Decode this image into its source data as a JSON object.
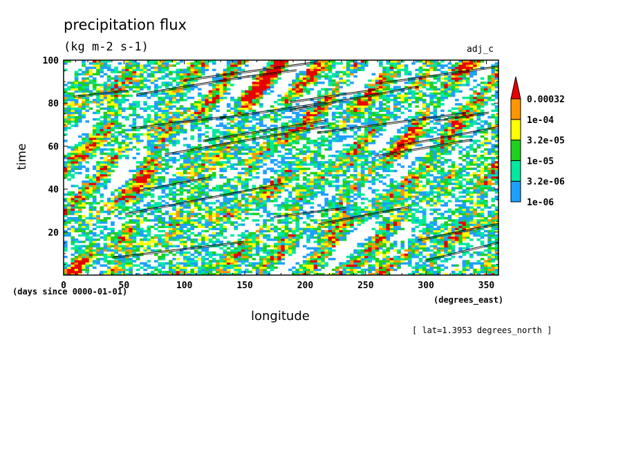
{
  "chart_data": {
    "type": "heatmap",
    "title": "precipitation flux",
    "units": "(kg m-2 s-1)",
    "case_name": "adj_c",
    "xlabel": "longitude",
    "x_units": "(degrees_east)",
    "ylabel": "time",
    "y_units": "(days since 0000-01-01)",
    "xlim": [
      0,
      360
    ],
    "ylim": [
      0,
      100
    ],
    "x_ticks": [
      0,
      50,
      100,
      150,
      200,
      250,
      300,
      350
    ],
    "y_ticks": [
      20,
      40,
      60,
      80,
      100
    ],
    "annotation": "[ lat=1.3953 degrees_north ]",
    "colorbar": {
      "labels": [
        "0.00032",
        "1e-04",
        "3.2e-05",
        "1e-05",
        "3.2e-06",
        "1e-06"
      ],
      "levels": [
        1e-06,
        3.2e-06,
        1e-05,
        3.2e-05,
        0.0001,
        0.00032
      ],
      "colors": [
        "#ffffff",
        "#1ea0ff",
        "#00e8a0",
        "#20d020",
        "#ffff00",
        "#ff9600",
        "#e60000"
      ],
      "extend": "max"
    },
    "field_description": "dense small patches of precipitation with streaks tilted eastward in time, spanning all longitudes and days 0-100"
  }
}
